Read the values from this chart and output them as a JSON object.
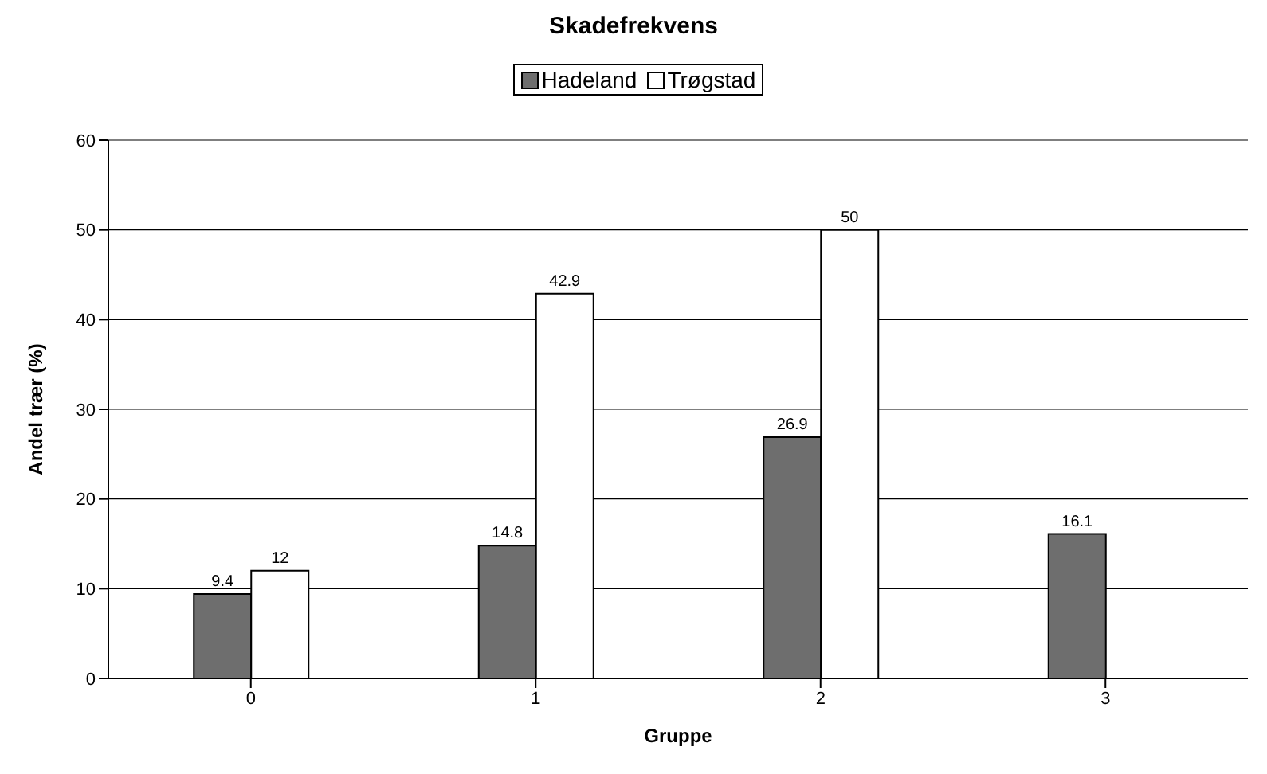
{
  "chart_data": {
    "type": "bar",
    "title": "Skadefrekvens",
    "xlabel": "Gruppe",
    "ylabel": "Andel trær (%)",
    "categories": [
      "0",
      "1",
      "2",
      "3"
    ],
    "series": [
      {
        "name": "Hadeland",
        "color": "#6e6e6e",
        "values": [
          9.4,
          14.8,
          26.9,
          16.1
        ]
      },
      {
        "name": "Trøgstad",
        "color": "#ffffff",
        "values": [
          12,
          42.9,
          50,
          null
        ]
      }
    ],
    "ylim": [
      0,
      60
    ],
    "yticks": [
      0,
      10,
      20,
      30,
      40,
      50,
      60
    ],
    "grid": "y",
    "legend": "top",
    "data_labels": true
  }
}
